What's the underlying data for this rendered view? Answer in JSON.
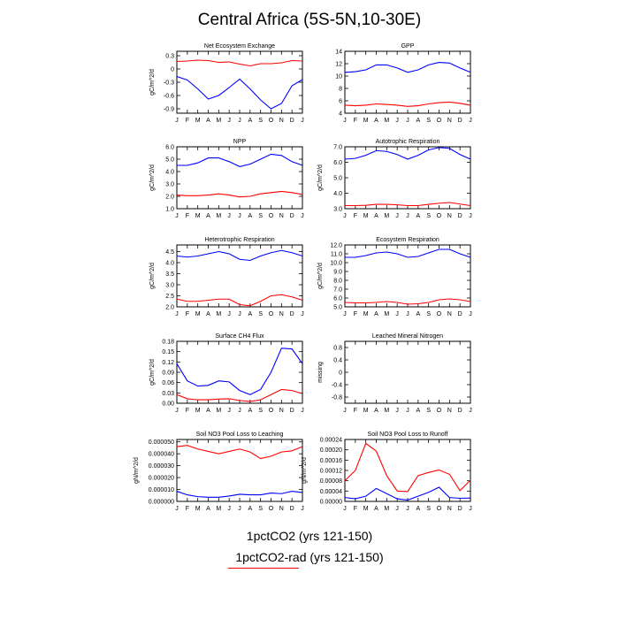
{
  "title": "Central Africa (5S-5N,10-30E)",
  "months": [
    "J",
    "F",
    "M",
    "A",
    "M",
    "J",
    "J",
    "A",
    "S",
    "O",
    "N",
    "D",
    "J"
  ],
  "colors": {
    "series_1": "#0000ff",
    "series_2": "#ff0000"
  },
  "legend": [
    "1pctCO2 (yrs 121-150)",
    "1pctCO2-rad (yrs 121-150)"
  ],
  "chart_data": [
    {
      "type": "line",
      "title": "Net Ecosystem Exchange",
      "ylabel": "gC/m^2/d",
      "ylim": [
        -1.0,
        0.4
      ],
      "yticks": [
        0.3,
        0.0,
        -0.3,
        -0.6,
        -0.9
      ],
      "ytick_labels": [
        "0.3",
        "0",
        "-0.3",
        "-0.6",
        "-0.9"
      ],
      "series": [
        {
          "values": [
            -0.17,
            -0.25,
            -0.45,
            -0.68,
            -0.6,
            -0.42,
            -0.23,
            -0.45,
            -0.7,
            -0.9,
            -0.78,
            -0.38,
            -0.24
          ]
        },
        {
          "values": [
            0.17,
            0.18,
            0.2,
            0.19,
            0.15,
            0.16,
            0.11,
            0.07,
            0.12,
            0.12,
            0.14,
            0.19,
            0.18
          ]
        }
      ]
    },
    {
      "type": "line",
      "title": "GPP",
      "ylabel": "",
      "ylim": [
        4,
        14
      ],
      "yticks": [
        4,
        6,
        8,
        10,
        12,
        14
      ],
      "ytick_labels": [
        "4",
        "6",
        "8",
        "10",
        "12",
        "14"
      ],
      "series": [
        {
          "values": [
            10.6,
            10.7,
            11.0,
            11.8,
            11.8,
            11.3,
            10.6,
            11.0,
            11.8,
            12.2,
            12.1,
            11.3,
            10.6
          ]
        },
        {
          "values": [
            5.3,
            5.2,
            5.3,
            5.5,
            5.4,
            5.3,
            5.1,
            5.2,
            5.5,
            5.7,
            5.8,
            5.6,
            5.3
          ]
        }
      ]
    },
    {
      "type": "line",
      "title": "NPP",
      "ylabel": "gC/m^2/d",
      "ylim": [
        1.0,
        6.0
      ],
      "yticks": [
        1.0,
        2.0,
        3.0,
        4.0,
        5.0,
        6.0
      ],
      "ytick_labels": [
        "1.0",
        "2.0",
        "3.0",
        "4.0",
        "5.0",
        "6.0"
      ],
      "series": [
        {
          "values": [
            4.5,
            4.5,
            4.7,
            5.1,
            5.1,
            4.8,
            4.4,
            4.6,
            5.0,
            5.4,
            5.3,
            4.8,
            4.5
          ]
        },
        {
          "values": [
            2.1,
            2.05,
            2.05,
            2.1,
            2.2,
            2.1,
            1.95,
            2.0,
            2.2,
            2.3,
            2.4,
            2.3,
            2.15
          ]
        }
      ]
    },
    {
      "type": "line",
      "title": "Autotrophic Respiration",
      "ylabel": "gC/m^2/d",
      "ylim": [
        3.0,
        7.0
      ],
      "yticks": [
        3.0,
        4.0,
        5.0,
        6.0,
        7.0
      ],
      "ytick_labels": [
        "3.0",
        "4.0",
        "5.0",
        "6.0",
        "7.0"
      ],
      "series": [
        {
          "values": [
            6.2,
            6.25,
            6.45,
            6.75,
            6.7,
            6.5,
            6.2,
            6.45,
            6.8,
            6.95,
            6.9,
            6.5,
            6.2
          ]
        },
        {
          "values": [
            3.2,
            3.2,
            3.22,
            3.28,
            3.28,
            3.25,
            3.2,
            3.2,
            3.28,
            3.35,
            3.4,
            3.3,
            3.2
          ]
        }
      ]
    },
    {
      "type": "line",
      "title": "Heterotrophic Respiration",
      "ylabel": "gC/m^2/d",
      "ylim": [
        2.0,
        4.8
      ],
      "yticks": [
        2.0,
        2.5,
        3.0,
        3.5,
        4.0,
        4.5
      ],
      "ytick_labels": [
        "2.0",
        "2.5",
        "3.0",
        "3.5",
        "4.0",
        "4.5"
      ],
      "series": [
        {
          "values": [
            4.3,
            4.25,
            4.3,
            4.4,
            4.5,
            4.4,
            4.15,
            4.1,
            4.3,
            4.45,
            4.55,
            4.45,
            4.3
          ]
        },
        {
          "values": [
            2.35,
            2.25,
            2.25,
            2.3,
            2.35,
            2.35,
            2.1,
            2.05,
            2.25,
            2.5,
            2.55,
            2.45,
            2.3
          ]
        }
      ]
    },
    {
      "type": "line",
      "title": "Ecosystem Respiration",
      "ylabel": "gC/m^2/d",
      "ylim": [
        5.0,
        12.0
      ],
      "yticks": [
        5.0,
        6.0,
        7.0,
        8.0,
        9.0,
        10.0,
        11.0,
        12.0
      ],
      "ytick_labels": [
        "5.0",
        "6.0",
        "7.0",
        "8.0",
        "9.0",
        "10.0",
        "11.0",
        "12.0"
      ],
      "series": [
        {
          "values": [
            10.6,
            10.6,
            10.8,
            11.1,
            11.2,
            11.0,
            10.6,
            10.7,
            11.1,
            11.5,
            11.5,
            11.0,
            10.6
          ]
        },
        {
          "values": [
            5.5,
            5.45,
            5.45,
            5.5,
            5.6,
            5.5,
            5.3,
            5.35,
            5.5,
            5.8,
            5.9,
            5.8,
            5.6
          ]
        }
      ]
    },
    {
      "type": "line",
      "title": "Surface CH4 Flux",
      "ylabel": "gC/m^2/d",
      "ylim": [
        0.0,
        0.18
      ],
      "yticks": [
        0.0,
        0.03,
        0.06,
        0.09,
        0.12,
        0.15,
        0.18
      ],
      "ytick_labels": [
        "0.00",
        "0.03",
        "0.06",
        "0.09",
        "0.12",
        "0.15",
        "0.18"
      ],
      "series": [
        {
          "values": [
            0.115,
            0.065,
            0.05,
            0.052,
            0.065,
            0.062,
            0.037,
            0.025,
            0.04,
            0.09,
            0.16,
            0.158,
            0.115
          ]
        },
        {
          "values": [
            0.025,
            0.013,
            0.01,
            0.01,
            0.012,
            0.013,
            0.008,
            0.005,
            0.01,
            0.025,
            0.04,
            0.037,
            0.028
          ]
        }
      ]
    },
    {
      "type": "line",
      "title": "Leached Mineral Nitrogen",
      "ylabel": "missing",
      "ylim": [
        -1.0,
        1.0
      ],
      "yticks": [
        0.8,
        0.4,
        0.0,
        -0.4,
        -0.8
      ],
      "ytick_labels": [
        "0.8",
        "0.4",
        "0",
        "-0.4",
        "-0.8"
      ],
      "series": []
    },
    {
      "type": "line",
      "title": "Soil NO3 Pool Loss to Leaching",
      "ylabel": "gN/m^2/d",
      "ylim": [
        0.0,
        5.2e-05
      ],
      "yticks": [
        0.0,
        1e-05,
        2e-05,
        3e-05,
        4e-05,
        5e-05
      ],
      "ytick_labels": [
        "0.000000",
        "0.000010",
        "0.000020",
        "0.000030",
        "0.000040",
        "0.000050"
      ],
      "series": [
        {
          "values": [
            8.5e-06,
            5.5e-06,
            4e-06,
            3.5e-06,
            3.5e-06,
            4.5e-06,
            6e-06,
            5.5e-06,
            5.5e-06,
            7e-06,
            6.5e-06,
            8.5e-06,
            7.5e-06
          ]
        },
        {
          "values": [
            4.6e-05,
            4.7e-05,
            4.4e-05,
            4.2e-05,
            4e-05,
            4.2e-05,
            4.4e-05,
            4.15e-05,
            3.6e-05,
            3.8e-05,
            4.15e-05,
            4.25e-05,
            4.6e-05
          ]
        }
      ]
    },
    {
      "type": "line",
      "title": "Soil NO3 Pool Loss to Runoff",
      "ylabel": "gN/m^2/d",
      "ylim": [
        0.0,
        0.00024
      ],
      "yticks": [
        0.0,
        4e-05,
        8e-05,
        0.00012,
        0.00016,
        0.0002,
        0.00024
      ],
      "ytick_labels": [
        "0.00000",
        "0.00004",
        "0.00008",
        "0.00012",
        "0.00016",
        "0.00020",
        "0.00024"
      ],
      "series": [
        {
          "values": [
            1.5e-05,
            1e-05,
            2e-05,
            5e-05,
            3e-05,
            1e-05,
            5e-06,
            2e-05,
            3.5e-05,
            5.5e-05,
            1.5e-05,
            1.2e-05,
            1.3e-05
          ]
        },
        {
          "values": [
            8e-05,
            0.00012,
            0.000225,
            0.000195,
            0.0001,
            4e-05,
            3.8e-05,
            0.0001,
            0.000112,
            0.000122,
            0.000105,
            4.2e-05,
            8.2e-05
          ]
        }
      ]
    }
  ]
}
